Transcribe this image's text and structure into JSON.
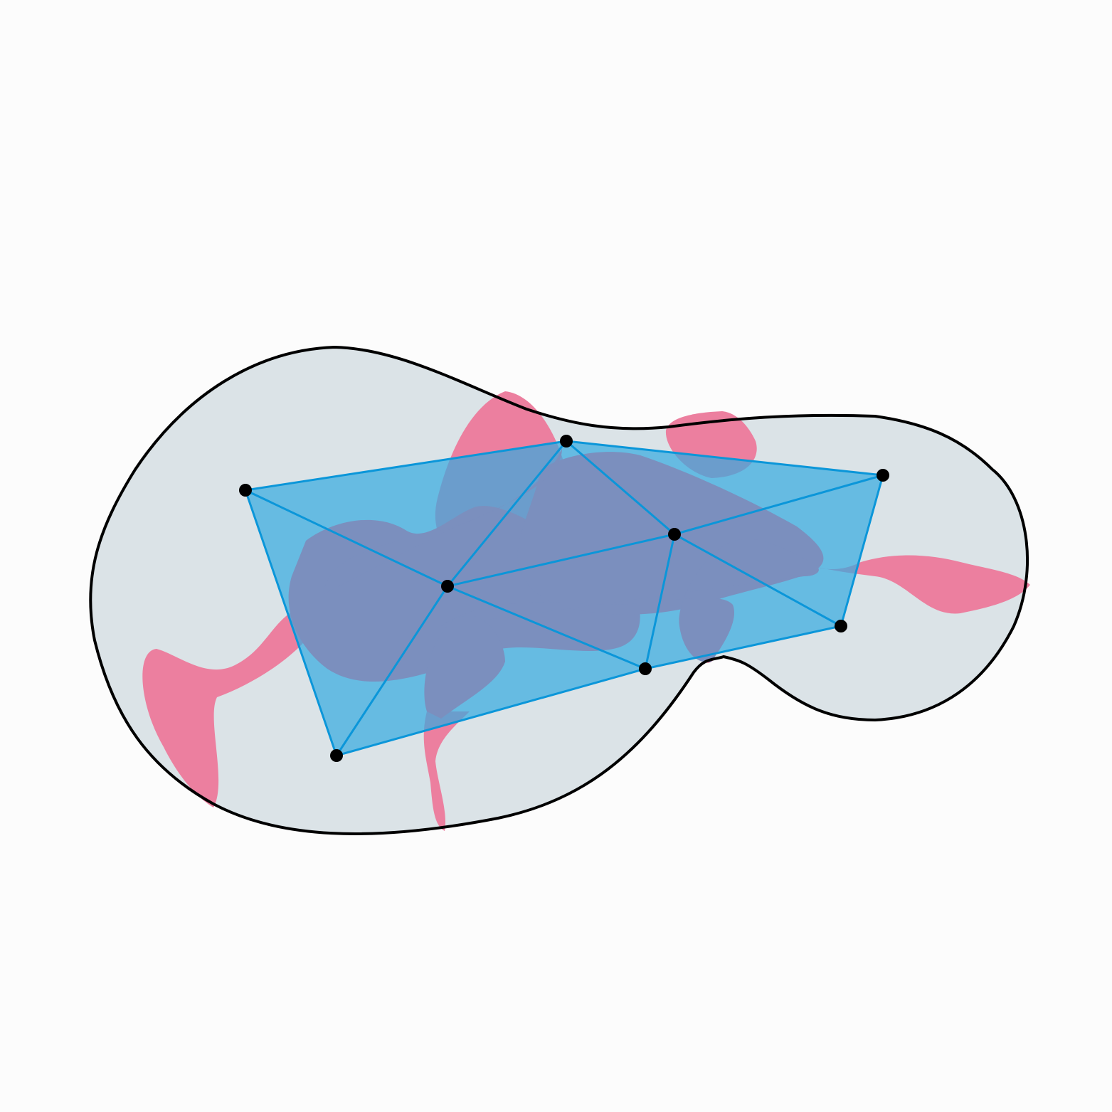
{
  "diagram": {
    "background_color": "#fcfcfc",
    "region": {
      "fill": "#dbe3e7",
      "stroke": "#000000"
    },
    "pink_blobs": {
      "fill": "#ec7f9f"
    },
    "mesh": {
      "fill": "#35aae0",
      "fill_opacity": 0.7,
      "edge_color": "#0b96d9"
    },
    "overlap": {
      "fill": "#7b8fbe"
    },
    "vertex": {
      "fill": "#000000"
    }
  }
}
